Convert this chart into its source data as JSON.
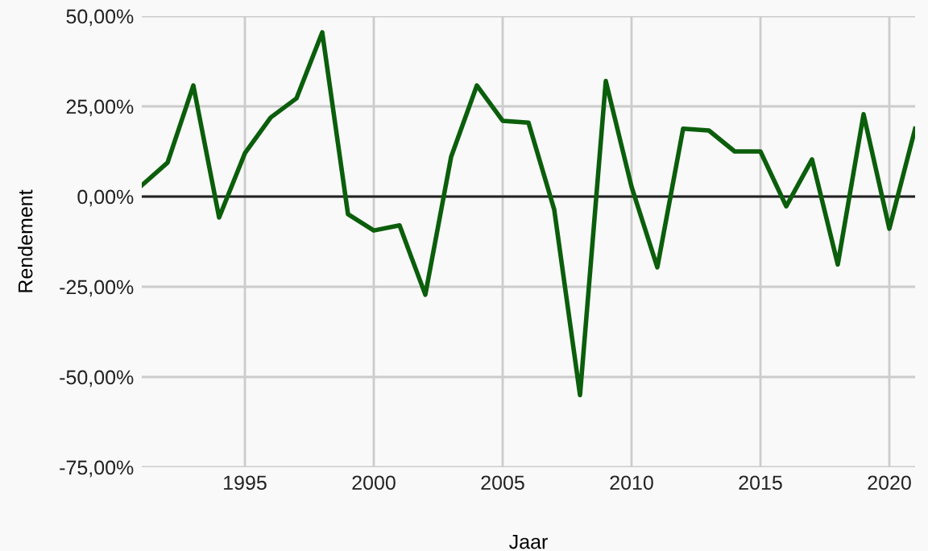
{
  "chart_data": {
    "type": "line",
    "xlabel": "Jaar",
    "ylabel": "Rendement",
    "x": [
      1991,
      1992,
      1993,
      1994,
      1995,
      1996,
      1997,
      1998,
      1999,
      2000,
      2001,
      2002,
      2003,
      2004,
      2005,
      2006,
      2007,
      2008,
      2009,
      2010,
      2011,
      2012,
      2013,
      2014,
      2015,
      2016,
      2017,
      2018,
      2019,
      2020,
      2021
    ],
    "series": [
      {
        "color": "#0b5e0b",
        "values": [
          3.1,
          9.4,
          30.8,
          -5.8,
          12,
          21.9,
          27.2,
          45.5,
          -4.9,
          -9.4,
          -8,
          -27.2,
          11,
          30.8,
          21,
          20.5,
          -3.6,
          -55,
          32,
          2.7,
          -19.6,
          18.8,
          18.3,
          12.5,
          12.5,
          -2.7,
          10.3,
          -18.8,
          22.8,
          -8.9,
          18.8
        ]
      }
    ],
    "xlim": [
      1991,
      2021
    ],
    "xticks": [
      1995,
      2000,
      2005,
      2010,
      2015,
      2020
    ],
    "ylim": [
      -75,
      50
    ],
    "yticks": [
      {
        "value": -75,
        "label": "-75,00%"
      },
      {
        "value": -50,
        "label": "-50,00%"
      },
      {
        "value": -25,
        "label": "-25,00%"
      },
      {
        "value": 0,
        "label": "0,00%"
      },
      {
        "value": 25,
        "label": "25,00%"
      },
      {
        "value": 50,
        "label": "50,00%"
      }
    ],
    "ref_lines": [
      {
        "axis": "y",
        "value": 0,
        "color": "#222222"
      }
    ],
    "grid": true,
    "legend": false
  }
}
